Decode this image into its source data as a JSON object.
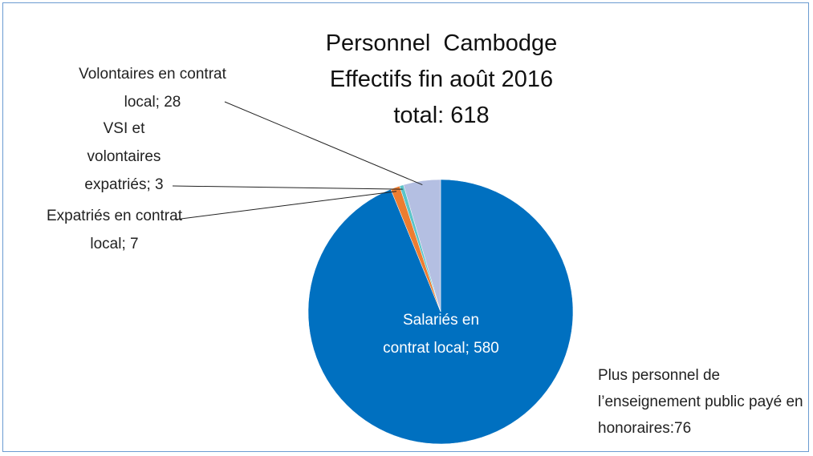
{
  "chart_data": {
    "type": "pie",
    "title": [
      "Personnel  Cambodge",
      "Effectifs fin août 2016",
      "total: 618"
    ],
    "categories": [
      "Salariés en contrat local",
      "Expatriés en contrat local",
      "VSI et volontaires expatriés",
      "Volontaires en contrat local"
    ],
    "values": [
      580,
      7,
      3,
      28
    ],
    "value_labels": [
      "Salariés en contrat local; 580",
      "Expatriés en contrat local; 7",
      "VSI et volontaires expatriés; 3",
      "Volontaires en contrat local; 28"
    ],
    "colors": [
      "#0070c0",
      "#ed7d31",
      "#5bc4c8",
      "#b4bfe2"
    ],
    "annotation": "Plus personnel de l’enseignement public payé en honoraires:76"
  }
}
